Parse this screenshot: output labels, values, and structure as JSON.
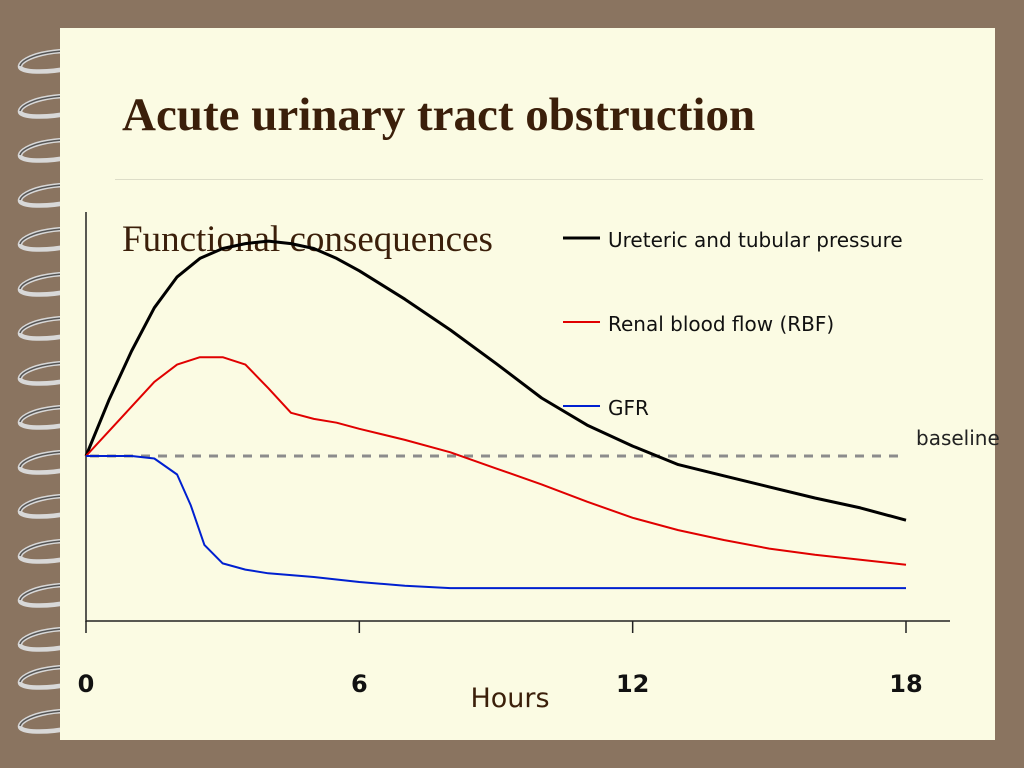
{
  "slide": {
    "title": "Acute urinary tract obstruction",
    "subtitle": "Functional consequences"
  },
  "chart_data": {
    "type": "line",
    "xlabel": "Hours",
    "ylabel": "",
    "xticks": [
      0,
      6,
      12,
      18
    ],
    "xlim": [
      0,
      18
    ],
    "ylim": [
      -1,
      2
    ],
    "baseline": {
      "label": "baseline",
      "value": 0
    },
    "grid": false,
    "legend": "top-right",
    "series": [
      {
        "name": "Ureteric and tubular pressure",
        "color": "#000000",
        "x": [
          0,
          0.5,
          1,
          1.5,
          2,
          2.5,
          3,
          3.5,
          4,
          4.5,
          5,
          5.5,
          6,
          7,
          8,
          9,
          10,
          11,
          12,
          13,
          14,
          15,
          16,
          17,
          18
        ],
        "y": [
          0,
          0.45,
          0.85,
          1.2,
          1.45,
          1.6,
          1.68,
          1.72,
          1.74,
          1.72,
          1.68,
          1.6,
          1.5,
          1.27,
          1.02,
          0.75,
          0.47,
          0.25,
          0.08,
          -0.07,
          -0.16,
          -0.25,
          -0.34,
          -0.42,
          -0.52
        ]
      },
      {
        "name": "Renal blood flow (RBF)",
        "color": "#e00000",
        "x": [
          0,
          0.5,
          1,
          1.5,
          2,
          2.5,
          3,
          3.5,
          4,
          4.5,
          5,
          5.5,
          6,
          7,
          8,
          9,
          10,
          11,
          12,
          13,
          14,
          15,
          16,
          17,
          18
        ],
        "y": [
          0,
          0.2,
          0.4,
          0.6,
          0.74,
          0.8,
          0.8,
          0.74,
          0.55,
          0.35,
          0.3,
          0.27,
          0.22,
          0.13,
          0.03,
          -0.1,
          -0.23,
          -0.37,
          -0.5,
          -0.6,
          -0.68,
          -0.75,
          -0.8,
          -0.84,
          -0.88
        ]
      },
      {
        "name": "GFR",
        "color": "#0020d0",
        "x": [
          0,
          0.5,
          1,
          1.5,
          2,
          2.3,
          2.6,
          3,
          3.5,
          4,
          5,
          6,
          7,
          8,
          9,
          10,
          11,
          12,
          13,
          14,
          15,
          16,
          17,
          18
        ],
        "y": [
          0,
          0,
          0,
          -0.02,
          -0.15,
          -0.4,
          -0.72,
          -0.87,
          -0.92,
          -0.95,
          -0.98,
          -1.02,
          -1.05,
          -1.07,
          -1.07,
          -1.07,
          -1.07,
          -1.07,
          -1.07,
          -1.07,
          -1.07,
          -1.07,
          -1.07,
          -1.07
        ]
      }
    ]
  }
}
